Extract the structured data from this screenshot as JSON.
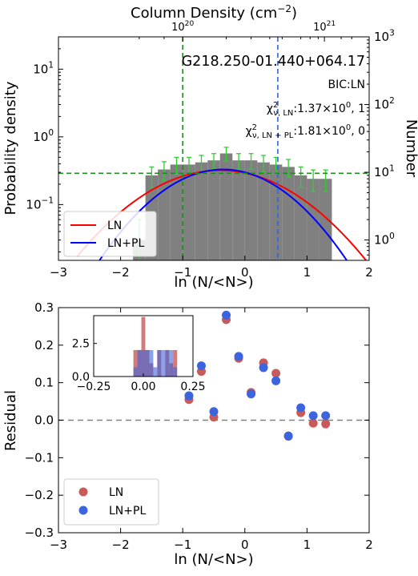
{
  "chart_data": [
    {
      "type": "bar",
      "panel": "top",
      "object_name": "G218.250-01.440+064.17",
      "bic_label": "BIC:LN",
      "chi_ln": {
        "base": "χ",
        "sup": "2",
        "sub": "ν, LN",
        "text": ":1.37×10",
        "exp": "0",
        "tail": ", 1"
      },
      "chi_lnpl": {
        "base": "χ",
        "sup": "2",
        "sub": "ν, LN + PL",
        "text": ":1.81×10",
        "exp": "0",
        "tail": ", 0"
      },
      "xlabel": "ln (N/<N>)",
      "ylabel_left": "Probability density",
      "ylabel_right": "Number",
      "top_axis_label": {
        "base": "Column Density (cm",
        "sup": "−2",
        "tail": ")"
      },
      "xlim": [
        -3,
        2
      ],
      "ylim_left": [
        0.015,
        30
      ],
      "ylim_right": [
        0.5,
        1000
      ],
      "xticks": [
        "−3",
        "−2",
        "−1",
        "0",
        "1",
        "2"
      ],
      "yticks_left": [
        {
          "base": "10",
          "exp": "−1",
          "value": 0.1
        },
        {
          "base": "10",
          "exp": "0",
          "value": 1
        },
        {
          "base": "10",
          "exp": "1",
          "value": 10
        }
      ],
      "yticks_right": [
        {
          "base": "10",
          "exp": "0",
          "value": 1
        },
        {
          "base": "10",
          "exp": "1",
          "value": 10
        },
        {
          "base": "10",
          "exp": "2",
          "value": 100
        },
        {
          "base": "10",
          "exp": "3",
          "value": 1000
        }
      ],
      "top_ticks": [
        {
          "base": "10",
          "exp": "20",
          "ln_pos": -1.0
        },
        {
          "base": "10",
          "exp": "21",
          "ln_pos": 1.28
        }
      ],
      "histogram": {
        "bin_edges": [
          -1.8,
          -1.6,
          -1.4,
          -1.2,
          -1.0,
          -0.8,
          -0.6,
          -0.4,
          -0.2,
          0.0,
          0.2,
          0.4,
          0.6,
          0.8,
          1.0,
          1.2,
          1.4
        ],
        "counts": [
          1,
          9,
          11,
          13,
          13,
          14,
          15,
          19,
          15,
          15,
          14,
          13,
          12,
          9,
          8,
          8
        ],
        "color": "#808080",
        "error_color": "#33cc33"
      },
      "density_per_count": 0.0308,
      "fit_ln": {
        "name": "LN",
        "color": "#ff0000",
        "peak": 0.32,
        "mu": -0.4,
        "sigma": 0.95,
        "x_range": [
          -2.7,
          2.0
        ]
      },
      "fit_lnpl": {
        "name": "LN+PL",
        "color": "#0000ff",
        "peak": 0.33,
        "mu": -0.35,
        "sigma": 0.8,
        "x_range": [
          -2.7,
          2.0
        ]
      },
      "vlines": [
        {
          "x": -1.0,
          "color": "#228b22",
          "style": "dashed"
        },
        {
          "x": 0.53,
          "color": "#3366dd",
          "style": "dashed"
        }
      ],
      "hline": {
        "y": 0.29,
        "color": "#228b22",
        "style": "dashed"
      },
      "legend": {
        "placement": "bottom-left",
        "entries": [
          {
            "label": "LN",
            "color": "#ff0000"
          },
          {
            "label": "LN+PL",
            "color": "#0000ff"
          }
        ]
      }
    },
    {
      "type": "scatter",
      "panel": "bottom",
      "xlabel": "ln (N/<N>)",
      "ylabel": "Residual",
      "xlim": [
        -3,
        2
      ],
      "ylim": [
        -0.3,
        0.3
      ],
      "xticks": [
        "−3",
        "−2",
        "−1",
        "0",
        "1",
        "2"
      ],
      "yticks": [
        "−0.3",
        "−0.2",
        "−0.1",
        "0.0",
        "0.1",
        "0.2",
        "0.3"
      ],
      "zero_line": {
        "y": 0.0,
        "color": "#808080",
        "style": "dashed"
      },
      "series": [
        {
          "name": "LN",
          "color": "#c85a5a",
          "x": [
            -0.9,
            -0.7,
            -0.5,
            -0.3,
            -0.1,
            0.1,
            0.3,
            0.5,
            0.7,
            0.9,
            1.1,
            1.3
          ],
          "y": [
            0.055,
            0.13,
            0.008,
            0.268,
            0.165,
            0.074,
            0.153,
            0.125,
            -0.043,
            0.02,
            -0.008,
            -0.01
          ]
        },
        {
          "name": "LN+PL",
          "color": "#3c64dc",
          "x": [
            -0.9,
            -0.7,
            -0.5,
            -0.3,
            -0.1,
            0.1,
            0.3,
            0.5,
            0.7,
            0.9,
            1.1,
            1.3
          ],
          "y": [
            0.065,
            0.145,
            0.023,
            0.28,
            0.17,
            0.07,
            0.14,
            0.105,
            -0.042,
            0.033,
            0.012,
            0.012
          ]
        }
      ],
      "legend": {
        "placement": "bottom-left",
        "entries": [
          {
            "label": "LN",
            "color": "#c85a5a"
          },
          {
            "label": "LN+PL",
            "color": "#3c64dc"
          }
        ]
      },
      "inset": {
        "type": "histogram",
        "xlim": [
          -0.25,
          0.25
        ],
        "ylim": [
          0,
          4.6
        ],
        "xticks": [
          "−0.25",
          "0.00",
          "0.25"
        ],
        "yticks": [
          "0.0",
          "2.5"
        ],
        "bin_width": 0.02,
        "ln_hist": {
          "color": "#c85a5a",
          "bins": [
            [
              -0.05,
              2
            ],
            [
              -0.03,
              2
            ],
            [
              -0.01,
              4.5
            ],
            [
              0.01,
              2
            ],
            [
              0.03,
              1
            ],
            [
              0.05,
              0
            ],
            [
              0.07,
              2
            ],
            [
              0.09,
              0
            ],
            [
              0.11,
              2
            ],
            [
              0.13,
              1
            ],
            [
              0.15,
              2
            ],
            [
              0.17,
              0
            ]
          ]
        },
        "lnpl_hist": {
          "color": "#3c64dc",
          "bins": [
            [
              -0.05,
              0.7
            ],
            [
              -0.03,
              2
            ],
            [
              -0.01,
              2
            ],
            [
              0.01,
              2
            ],
            [
              0.03,
              2
            ],
            [
              0.05,
              0.7
            ],
            [
              0.07,
              2
            ],
            [
              0.09,
              2
            ],
            [
              0.11,
              2
            ],
            [
              0.13,
              2
            ],
            [
              0.15,
              0.7
            ],
            [
              0.17,
              0
            ]
          ]
        }
      }
    }
  ]
}
